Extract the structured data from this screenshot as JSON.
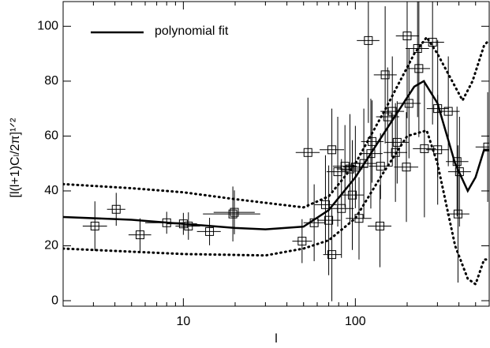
{
  "chart_data": {
    "type": "scatter",
    "x_label": "l",
    "y_label": "[l(l+1)Cₗ/2π]¹ᐟ²",
    "xlog": true,
    "xlim": [
      2,
      600
    ],
    "ylim": [
      -2,
      109
    ],
    "xticks": [
      10,
      100
    ],
    "xminor": [
      3,
      4,
      5,
      6,
      7,
      8,
      9,
      20,
      30,
      40,
      50,
      60,
      70,
      80,
      90,
      200,
      300,
      400,
      500
    ],
    "yticks": [
      0,
      20,
      40,
      60,
      80,
      100
    ],
    "points": {
      "x": [
        3.06,
        4.07,
        5.6,
        8.0,
        10,
        10.7,
        14.2,
        19.4,
        19.8,
        49,
        53,
        57.6,
        67,
        70,
        73,
        73,
        79,
        83,
        87,
        93,
        96,
        100,
        105,
        112,
        119,
        123,
        125,
        139,
        140,
        149,
        154,
        164,
        171,
        175,
        198,
        200,
        205,
        230,
        234,
        252,
        281,
        301,
        301,
        347,
        390,
        403,
        395,
        588
      ],
      "y": [
        27.2,
        33.3,
        24,
        28.4,
        28,
        27.2,
        25.2,
        31.6,
        32.2,
        21.7,
        54,
        28.4,
        35,
        29.3,
        16.8,
        55,
        47,
        33.6,
        49,
        48,
        38.5,
        48.7,
        30,
        50,
        94.8,
        53.6,
        58,
        27.2,
        49,
        82.3,
        67,
        69,
        54,
        57.7,
        48.7,
        96.5,
        71.9,
        91.9,
        84.6,
        55.4,
        94.2,
        70,
        55,
        69,
        50.7,
        47,
        31.6,
        56
      ],
      "yerr": [
        9,
        6,
        6,
        4,
        4,
        5,
        5,
        10,
        8,
        8,
        20,
        14,
        18,
        20,
        17,
        15,
        20,
        18,
        15,
        20,
        20,
        15,
        15,
        20,
        30,
        20,
        15,
        15,
        12,
        25,
        18,
        20,
        18,
        15,
        20,
        30,
        20,
        25,
        25,
        25,
        30,
        25,
        20,
        20,
        20,
        20,
        25,
        20
      ],
      "xlo": [
        2.6,
        3.6,
        4.8,
        6,
        8,
        9,
        12,
        13,
        15,
        43,
        45,
        50,
        58,
        60,
        65,
        62,
        68,
        70,
        74,
        78,
        82,
        85,
        88,
        95,
        102,
        105,
        108,
        118,
        120,
        128,
        132,
        140,
        146,
        150,
        168,
        172,
        176,
        196,
        200,
        216,
        242,
        260,
        258,
        298,
        336,
        346,
        340,
        500
      ],
      "xhi": [
        3.6,
        4.6,
        6.5,
        10,
        12,
        12.5,
        16.5,
        28,
        26,
        56,
        62,
        66,
        78,
        82,
        83,
        86,
        92,
        98,
        102,
        110,
        112,
        118,
        124,
        132,
        138,
        144,
        146,
        162,
        164,
        174,
        180,
        192,
        200,
        204,
        232,
        234,
        240,
        268,
        272,
        294,
        328,
        350,
        350,
        404,
        454,
        470,
        460,
        600
      ]
    },
    "series": [
      {
        "name": "polynomial fit",
        "style": "solid",
        "x": [
          2,
          5,
          10,
          20,
          30,
          50,
          70,
          100,
          150,
          220,
          250,
          300,
          380,
          450,
          500,
          560,
          600
        ],
        "values": [
          30.5,
          29.5,
          28,
          26.5,
          26,
          27,
          33,
          45,
          62,
          78,
          80,
          72,
          50,
          40,
          45,
          55,
          55
        ]
      },
      {
        "style": "dotted",
        "x": [
          2,
          5,
          10,
          20,
          50,
          70,
          100,
          150,
          220,
          260,
          300,
          380,
          420,
          480,
          560,
          600
        ],
        "values": [
          42.5,
          41,
          39.5,
          37,
          34,
          38,
          50,
          70,
          90,
          96,
          90,
          78,
          73,
          80,
          93,
          95
        ]
      },
      {
        "style": "dotted",
        "x": [
          2,
          10,
          30,
          50,
          70,
          100,
          140,
          200,
          260,
          300,
          380,
          450,
          500,
          560,
          600
        ],
        "values": [
          19,
          17,
          16.5,
          19,
          22,
          30,
          45,
          60,
          62,
          50,
          20,
          8,
          6,
          15,
          15
        ]
      }
    ]
  }
}
